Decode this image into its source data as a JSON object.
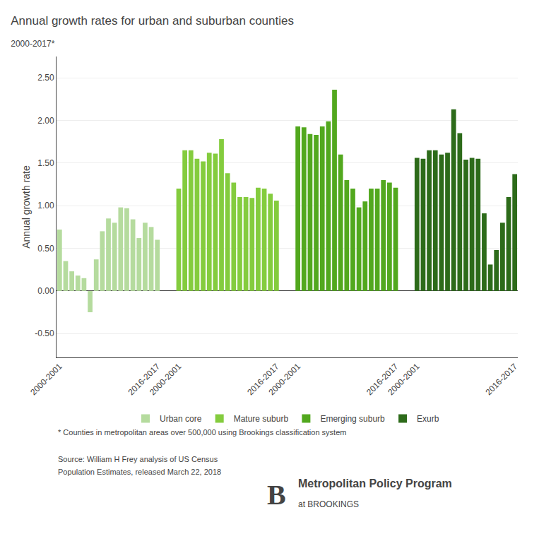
{
  "chart_data": {
    "type": "bar",
    "title": "Annual growth rates for urban and suburban counties",
    "subtitle": "2000-2017*",
    "ylabel": "Annual growth rate",
    "categories": [
      "2000-2001",
      null,
      null,
      null,
      null,
      null,
      null,
      null,
      null,
      null,
      null,
      null,
      null,
      null,
      null,
      null,
      "2016-2017",
      "2000-2001",
      null,
      null,
      null,
      null,
      null,
      null,
      null,
      null,
      null,
      null,
      null,
      null,
      null,
      null,
      null,
      "2016-2017",
      "2000-2001",
      null,
      null,
      null,
      null,
      null,
      null,
      null,
      null,
      null,
      null,
      null,
      null,
      null,
      null,
      null,
      "2016-2017",
      "2000-2001",
      null,
      null,
      null,
      null,
      null,
      null,
      null,
      null,
      null,
      null,
      null,
      null,
      null,
      null,
      null,
      "2016-2017"
    ],
    "series": [
      {
        "name": "Urban core",
        "color": "#b5db9e",
        "values": [
          0.72,
          0.35,
          0.23,
          0.18,
          0.15,
          -0.25,
          0.37,
          0.7,
          0.85,
          0.8,
          0.98,
          0.97,
          0.84,
          0.62,
          0.8,
          0.75,
          0.6,
          null,
          null,
          null,
          null,
          null,
          null,
          null,
          null,
          null,
          null,
          null,
          null,
          null,
          null,
          null,
          null,
          null,
          null,
          null,
          null,
          null,
          null,
          null,
          null,
          null,
          null,
          null,
          null,
          null,
          null,
          null,
          null,
          null,
          null,
          null,
          null,
          null,
          null,
          null,
          null,
          null,
          null,
          null,
          null,
          null,
          null,
          null,
          null,
          null,
          null,
          null
        ]
      },
      {
        "name": "Mature suburb",
        "color": "#84cc3e",
        "values": [
          null,
          null,
          null,
          null,
          null,
          null,
          null,
          null,
          null,
          null,
          null,
          null,
          null,
          null,
          null,
          null,
          null,
          1.2,
          1.65,
          1.65,
          1.55,
          1.52,
          1.62,
          1.61,
          1.78,
          1.38,
          1.27,
          1.1,
          1.1,
          1.09,
          1.21,
          1.2,
          1.14,
          1.06,
          null,
          null,
          null,
          null,
          null,
          null,
          null,
          null,
          null,
          null,
          null,
          null,
          null,
          null,
          null,
          null,
          null,
          null,
          null,
          null,
          null,
          null,
          null,
          null,
          null,
          null,
          null,
          null,
          null,
          null,
          null,
          null,
          null,
          null
        ]
      },
      {
        "name": "Emerging suburb",
        "color": "#52a81e",
        "values": [
          null,
          null,
          null,
          null,
          null,
          null,
          null,
          null,
          null,
          null,
          null,
          null,
          null,
          null,
          null,
          null,
          null,
          null,
          null,
          null,
          null,
          null,
          null,
          null,
          null,
          null,
          null,
          null,
          null,
          null,
          null,
          null,
          null,
          null,
          1.93,
          1.92,
          1.84,
          1.83,
          1.93,
          1.99,
          2.36,
          1.6,
          1.3,
          1.2,
          0.98,
          1.05,
          1.2,
          1.2,
          1.3,
          1.27,
          1.21,
          null,
          null,
          null,
          null,
          null,
          null,
          null,
          null,
          null,
          null,
          null,
          null,
          null,
          null,
          null,
          null,
          null
        ]
      },
      {
        "name": "Exurb",
        "color": "#2d6b1a",
        "values": [
          null,
          null,
          null,
          null,
          null,
          null,
          null,
          null,
          null,
          null,
          null,
          null,
          null,
          null,
          null,
          null,
          null,
          null,
          null,
          null,
          null,
          null,
          null,
          null,
          null,
          null,
          null,
          null,
          null,
          null,
          null,
          null,
          null,
          null,
          null,
          null,
          null,
          null,
          null,
          null,
          null,
          null,
          null,
          null,
          null,
          null,
          null,
          null,
          null,
          null,
          null,
          1.56,
          1.55,
          1.65,
          1.65,
          1.6,
          1.62,
          2.13,
          1.85,
          1.54,
          1.56,
          1.55,
          0.91,
          0.31,
          0.48,
          0.8,
          1.1,
          1.37
        ]
      }
    ],
    "ylim": [
      -0.78,
      2.75
    ],
    "yticks": [
      {
        "value": -0.5,
        "label": "-0.50"
      },
      {
        "value": 0,
        "label": "0.00"
      },
      {
        "value": 0.5,
        "label": "0.50"
      },
      {
        "value": 1,
        "label": "1.00"
      },
      {
        "value": 1.5,
        "label": "1.50"
      },
      {
        "value": 2,
        "label": "2.00"
      },
      {
        "value": 2.5,
        "label": "2.50"
      }
    ],
    "grid": true,
    "legend": "bottom",
    "annotations": [
      "* Counties in metropolitan areas over 500,000 using Brookings classification system",
      "Source: William H Frey analysis of US Census",
      "Population Estimates, released March 22, 2018",
      "B",
      "Metropolitan Policy Program",
      "at BROOKINGS"
    ]
  }
}
